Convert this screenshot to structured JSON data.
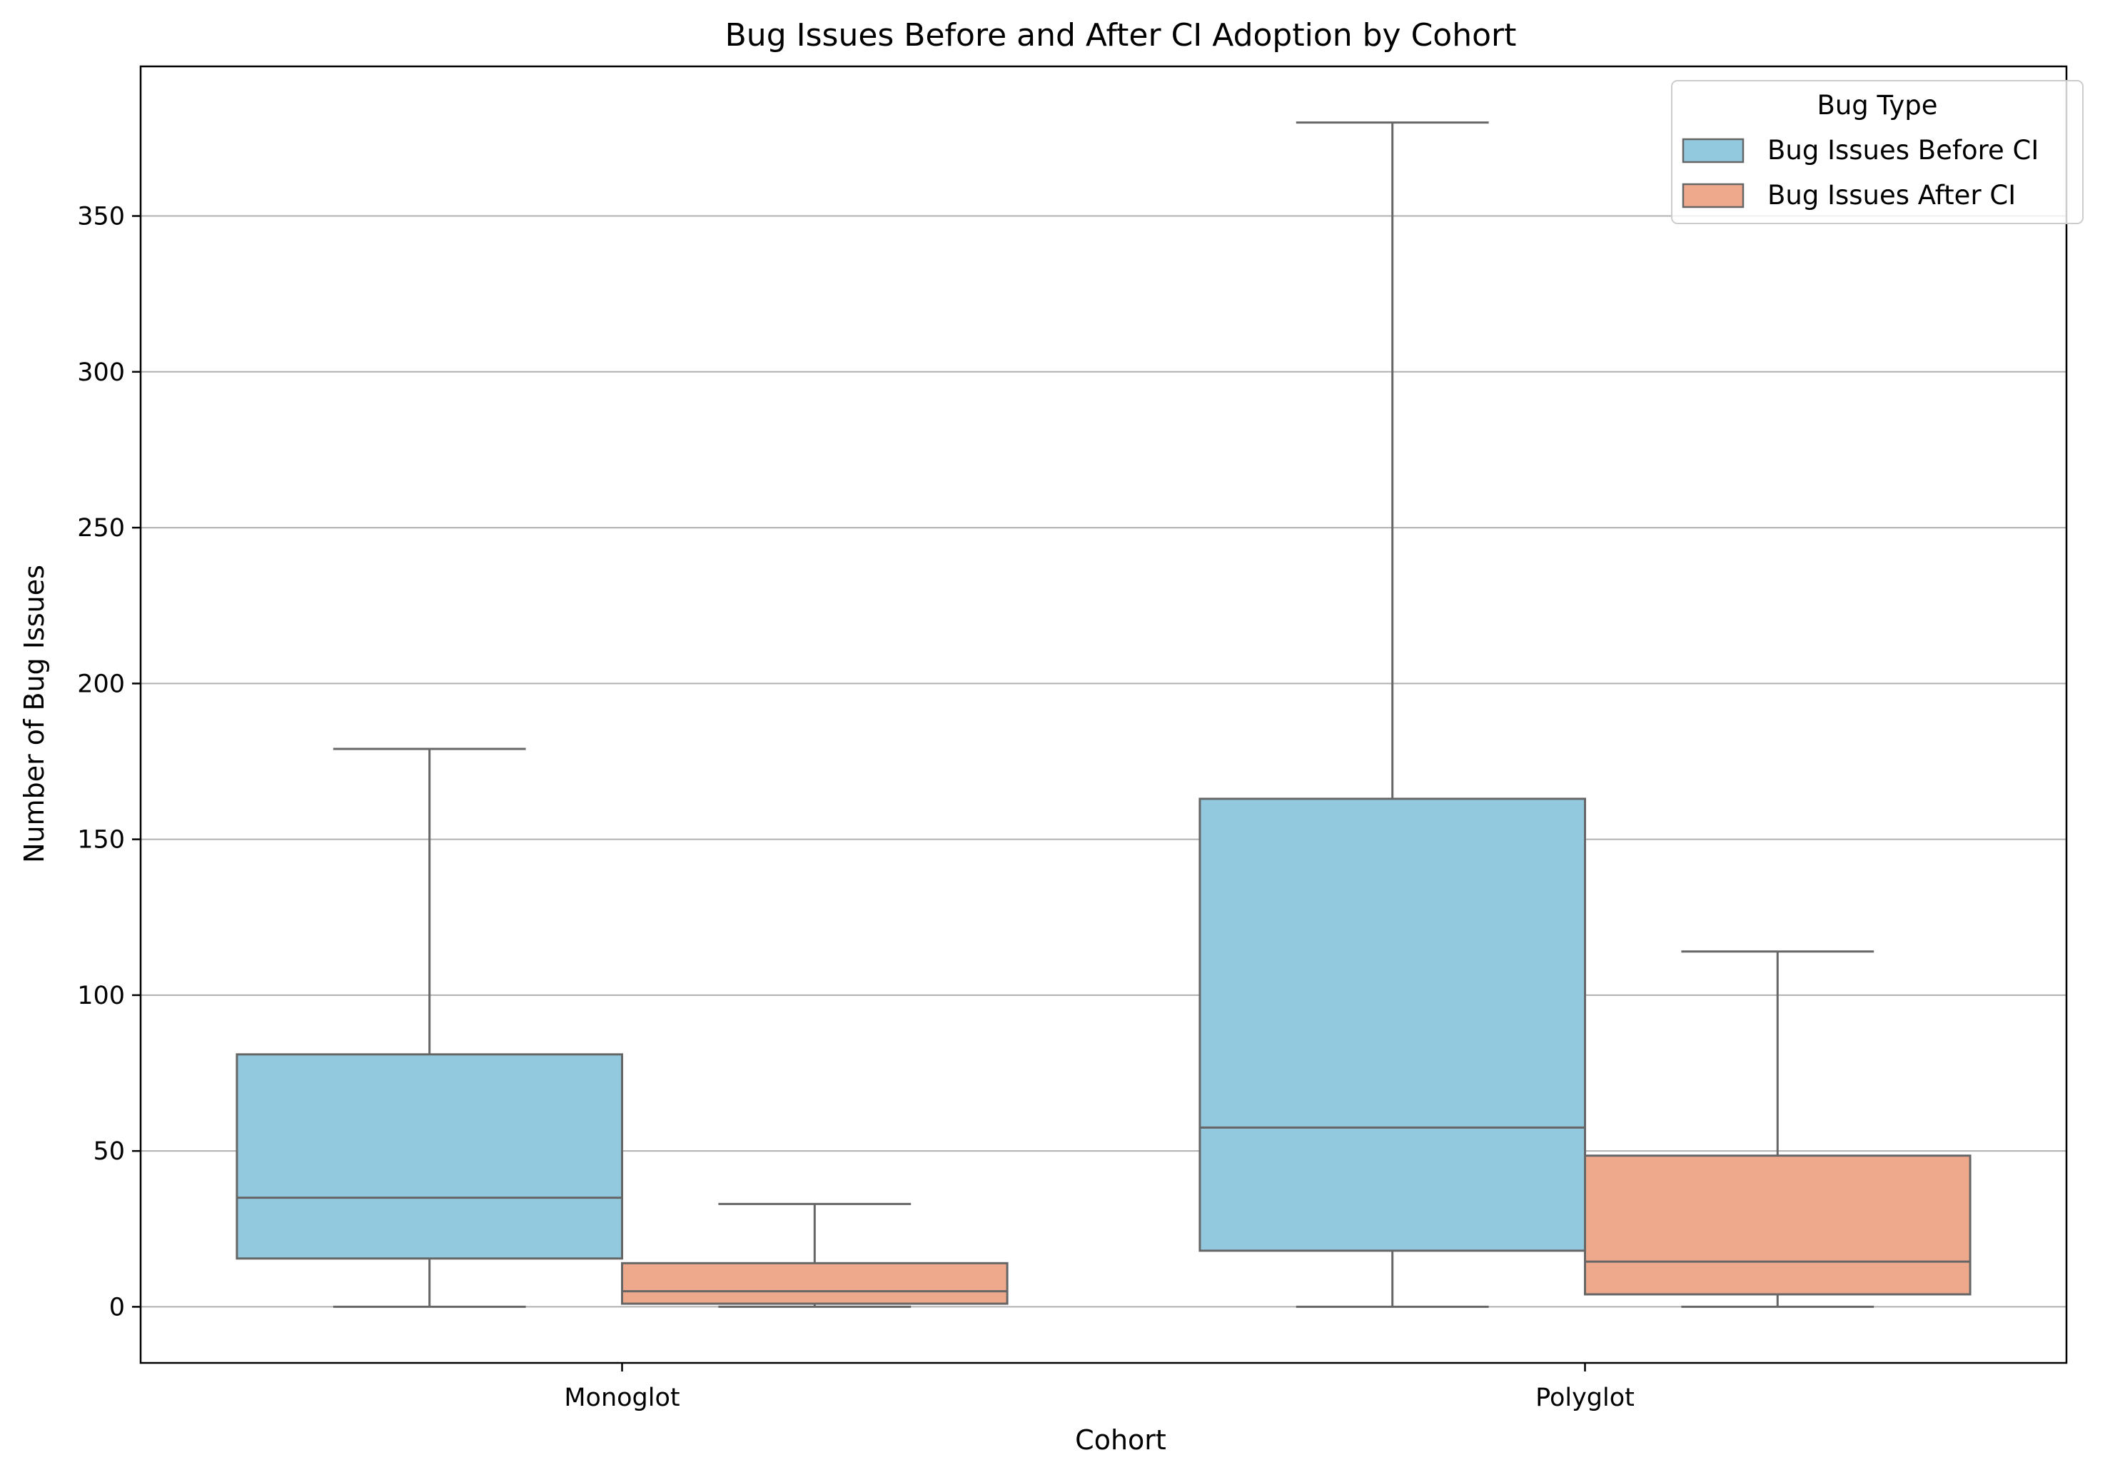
{
  "chart_data": {
    "type": "box",
    "title": "Bug Issues Before and After CI Adoption by Cohort",
    "xlabel": "Cohort",
    "ylabel": "Number of Bug Issues",
    "categories": [
      "Monoglot",
      "Polyglot"
    ],
    "ylim": [
      -18,
      398
    ],
    "yticks": [
      0,
      50,
      100,
      150,
      200,
      250,
      300,
      350
    ],
    "grid": "horizontal",
    "legend": {
      "title": "Bug Type",
      "placement": "top-right"
    },
    "series": [
      {
        "name": "Bug Issues Before CI",
        "color": "#92c9de",
        "boxes": [
          {
            "whisker_low": 0,
            "q1": 15.5,
            "median": 35,
            "q3": 81,
            "whisker_high": 179
          },
          {
            "whisker_low": 0,
            "q1": 18,
            "median": 57.5,
            "q3": 163,
            "whisker_high": 380
          }
        ]
      },
      {
        "name": "Bug Issues After CI",
        "color": "#eea88b",
        "boxes": [
          {
            "whisker_low": 0,
            "q1": 1,
            "median": 5,
            "q3": 14,
            "whisker_high": 33
          },
          {
            "whisker_low": 0,
            "q1": 4,
            "median": 14.5,
            "q3": 48.5,
            "whisker_high": 114
          }
        ]
      }
    ],
    "edge_color": "#666666"
  }
}
